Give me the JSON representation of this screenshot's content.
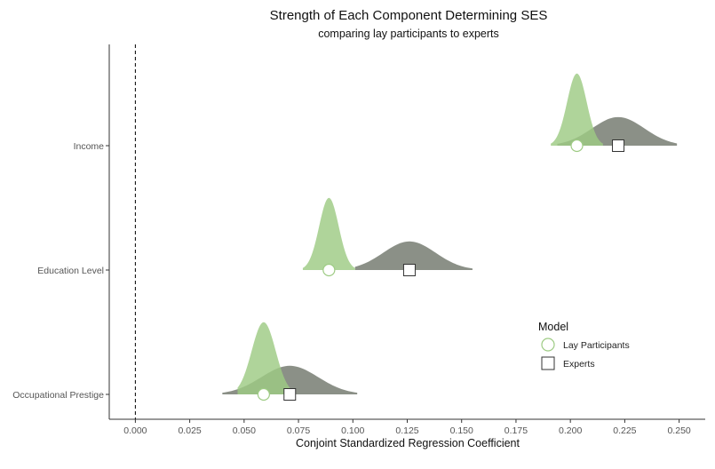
{
  "chart_data": {
    "type": "density",
    "title": "Strength of Each Component Determining SES",
    "subtitle": "comparing lay participants to experts",
    "xlabel": "Conjoint Standardized Regression Coefficient",
    "ylabel": "",
    "xlim": [
      -0.012,
      0.262
    ],
    "x_ticks": [
      "0.000",
      "0.025",
      "0.050",
      "0.075",
      "0.100",
      "0.125",
      "0.150",
      "0.175",
      "0.200",
      "0.225",
      "0.250"
    ],
    "x_tick_values": [
      0,
      0.025,
      0.05,
      0.075,
      0.1,
      0.125,
      0.15,
      0.175,
      0.2,
      0.225,
      0.25
    ],
    "reference_line": {
      "x": 0,
      "style": "dashed"
    },
    "categories": [
      "Occupational Prestige",
      "Education Level",
      "Income"
    ],
    "series": [
      {
        "name": "Lay Participants",
        "marker": "circle",
        "color": "#9ecb84",
        "estimates": [
          0.059,
          0.089,
          0.203
        ],
        "spread": [
          0.0055,
          0.0045,
          0.0045
        ],
        "ranges": [
          [
            0.047,
            0.071
          ],
          [
            0.077,
            0.101
          ],
          [
            0.191,
            0.215
          ]
        ],
        "peak_height": 0.58
      },
      {
        "name": "Experts",
        "marker": "square",
        "color": "#777c72",
        "estimates": [
          0.071,
          0.126,
          0.222
        ],
        "spread": [
          0.013,
          0.012,
          0.012
        ],
        "ranges": [
          [
            0.04,
            0.102
          ],
          [
            0.101,
            0.155
          ],
          [
            0.194,
            0.249
          ]
        ],
        "peak_height": 0.23
      }
    ],
    "legend": {
      "title": "Model",
      "position": "right"
    },
    "grid": false
  }
}
